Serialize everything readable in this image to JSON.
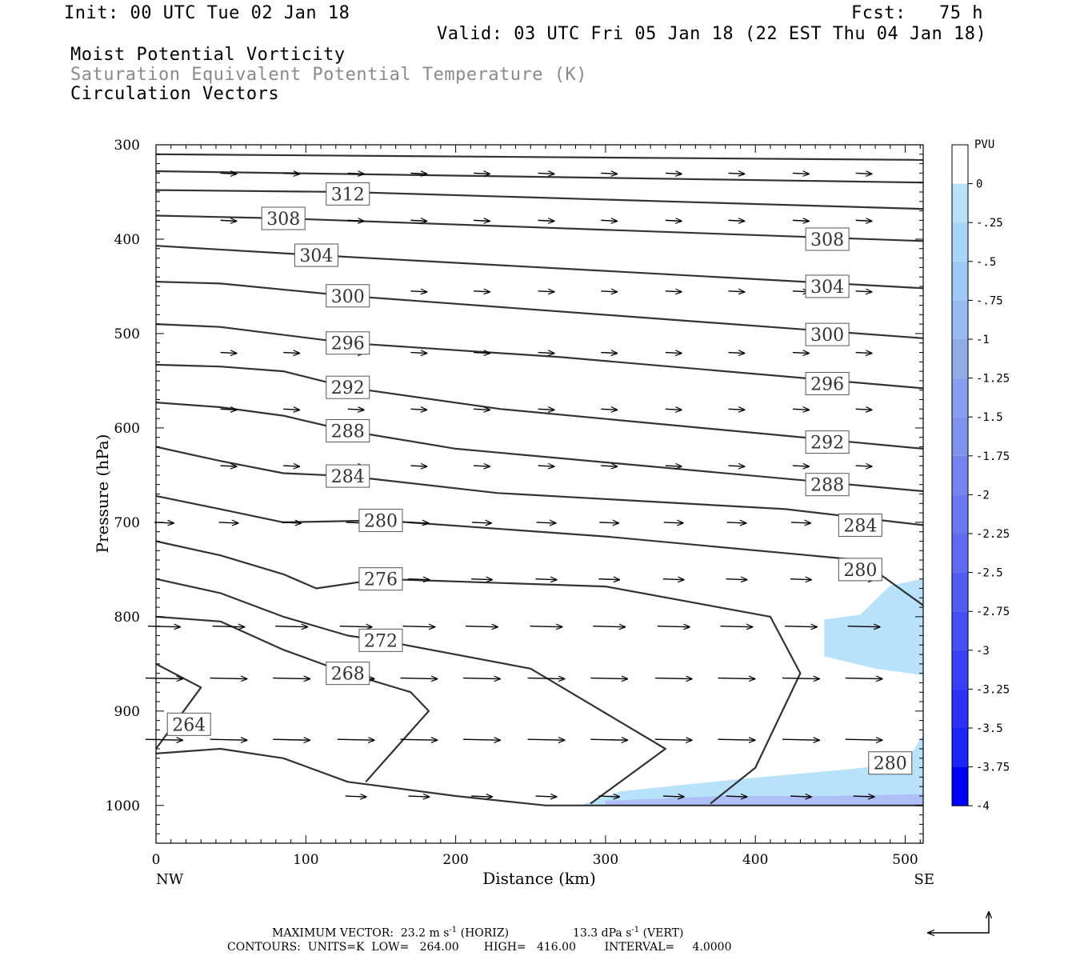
{
  "header": {
    "init": "Init: 00 UTC Tue 02 Jan 18",
    "fcst": "Fcst:   75 h",
    "valid": "Valid: 03 UTC Fri 05 Jan 18 (22 EST Thu 04 Jan 18)",
    "field1": "Moist Potential Vorticity",
    "field2": "Saturation Equivalent Potential Temperature (K)",
    "field3": "Circulation Vectors"
  },
  "colors": {
    "contour": "#333333",
    "field2_text": "#8a8a8a",
    "pv_fill_light": "#b8e2fa",
    "pv_fill_mid": "#9fd3f7",
    "pv_fill_dark": "#a9aff5"
  },
  "chart_data": {
    "type": "cross-section",
    "xlabel": "Distance (km)",
    "ylabel": "Pressure (hPa)",
    "x_endpoints": {
      "left": "NW",
      "right": "SE"
    },
    "xlim": [
      0,
      512
    ],
    "ylim": [
      1040,
      300
    ],
    "x_ticks": [
      0,
      100,
      200,
      300,
      400,
      500
    ],
    "y_ticks": [
      300,
      400,
      500,
      600,
      700,
      800,
      900,
      1000
    ],
    "contours": [
      {
        "label": "312",
        "points": [
          [
            0,
            310
          ],
          [
            512,
            316
          ]
        ],
        "labels_at": [
          [
            128,
            352
          ]
        ]
      },
      {
        "label": "",
        "points": [
          [
            0,
            328
          ],
          [
            512,
            340
          ]
        ]
      },
      {
        "label": "",
        "points": [
          [
            0,
            348
          ],
          [
            128,
            350
          ],
          [
            512,
            368
          ]
        ]
      },
      {
        "label": "308",
        "points": [
          [
            0,
            375
          ],
          [
            85,
            378
          ],
          [
            512,
            402
          ]
        ],
        "labels_at": [
          [
            85,
            378
          ],
          [
            448,
            400
          ]
        ]
      },
      {
        "label": "304",
        "points": [
          [
            0,
            407
          ],
          [
            107,
            417
          ],
          [
            512,
            452
          ]
        ],
        "labels_at": [
          [
            107,
            417
          ],
          [
            448,
            450
          ]
        ]
      },
      {
        "label": "300",
        "points": [
          [
            0,
            445
          ],
          [
            43,
            447
          ],
          [
            128,
            460
          ],
          [
            512,
            505
          ]
        ],
        "labels_at": [
          [
            128,
            460
          ],
          [
            448,
            501
          ]
        ]
      },
      {
        "label": "296",
        "points": [
          [
            0,
            490
          ],
          [
            43,
            493
          ],
          [
            128,
            510
          ],
          [
            270,
            525
          ],
          [
            512,
            558
          ]
        ],
        "labels_at": [
          [
            128,
            510
          ],
          [
            448,
            553
          ]
        ]
      },
      {
        "label": "292",
        "points": [
          [
            0,
            533
          ],
          [
            43,
            535
          ],
          [
            85,
            540
          ],
          [
            128,
            557
          ],
          [
            230,
            580
          ],
          [
            512,
            622
          ]
        ],
        "labels_at": [
          [
            128,
            557
          ],
          [
            448,
            615
          ]
        ]
      },
      {
        "label": "288",
        "points": [
          [
            0,
            573
          ],
          [
            43,
            578
          ],
          [
            85,
            587
          ],
          [
            128,
            603
          ],
          [
            200,
            622
          ],
          [
            512,
            667
          ]
        ],
        "labels_at": [
          [
            128,
            603
          ],
          [
            448,
            660
          ]
        ]
      },
      {
        "label": "284",
        "points": [
          [
            0,
            620
          ],
          [
            43,
            635
          ],
          [
            85,
            648
          ],
          [
            128,
            651
          ],
          [
            228,
            669
          ],
          [
            420,
            686
          ],
          [
            512,
            703
          ]
        ],
        "labels_at": [
          [
            128,
            651
          ],
          [
            470,
            703
          ]
        ]
      },
      {
        "label": "280",
        "points": [
          [
            0,
            672
          ],
          [
            43,
            686
          ],
          [
            85,
            700
          ],
          [
            150,
            698
          ],
          [
            300,
            715
          ],
          [
            470,
            740
          ],
          [
            512,
            788
          ]
        ],
        "labels_at": [
          [
            150,
            698
          ],
          [
            470,
            750
          ],
          [
            490,
            955
          ]
        ]
      },
      {
        "label": "276",
        "points": [
          [
            0,
            720
          ],
          [
            43,
            735
          ],
          [
            85,
            755
          ],
          [
            107,
            770
          ],
          [
            150,
            760
          ],
          [
            300,
            768
          ],
          [
            410,
            800
          ],
          [
            430,
            860
          ],
          [
            400,
            960
          ],
          [
            370,
            998
          ]
        ],
        "labels_at": [
          [
            150,
            760
          ]
        ]
      },
      {
        "label": "272",
        "points": [
          [
            0,
            760
          ],
          [
            43,
            775
          ],
          [
            85,
            800
          ],
          [
            128,
            820
          ],
          [
            150,
            825
          ],
          [
            250,
            855
          ],
          [
            340,
            940
          ],
          [
            290,
            998
          ]
        ],
        "labels_at": [
          [
            150,
            825
          ]
        ]
      },
      {
        "label": "268",
        "points": [
          [
            0,
            800
          ],
          [
            43,
            805
          ],
          [
            85,
            835
          ],
          [
            128,
            860
          ],
          [
            170,
            880
          ],
          [
            182,
            900
          ],
          [
            140,
            975
          ]
        ],
        "labels_at": [
          [
            128,
            860
          ]
        ]
      },
      {
        "label": "264",
        "points": [
          [
            0,
            850
          ],
          [
            30,
            875
          ],
          [
            0,
            940
          ]
        ],
        "labels_at": [
          [
            22,
            914
          ]
        ]
      },
      {
        "label": "",
        "points": [
          [
            0,
            945
          ],
          [
            43,
            940
          ],
          [
            85,
            950
          ],
          [
            128,
            975
          ],
          [
            200,
            990
          ],
          [
            260,
            1000
          ],
          [
            512,
            1000
          ]
        ]
      }
    ],
    "pv_regions": [
      {
        "level": "-0.25",
        "points": [
          [
            446,
            803
          ],
          [
            470,
            798
          ],
          [
            490,
            767
          ],
          [
            512,
            760
          ],
          [
            512,
            862
          ],
          [
            480,
            855
          ],
          [
            446,
            842
          ]
        ]
      },
      {
        "level": "-0.25",
        "points": [
          [
            283,
            1000
          ],
          [
            310,
            985
          ],
          [
            390,
            972
          ],
          [
            460,
            962
          ],
          [
            500,
            955
          ],
          [
            512,
            925
          ],
          [
            512,
            1000
          ]
        ]
      },
      {
        "level": "-0.5",
        "points": [
          [
            300,
            995
          ],
          [
            380,
            990
          ],
          [
            450,
            990
          ],
          [
            512,
            988
          ],
          [
            512,
            1000
          ],
          [
            300,
            1000
          ]
        ]
      }
    ],
    "vectors": [
      {
        "p": 330,
        "x": [
          43,
          85,
          128,
          170,
          212,
          255,
          297,
          340,
          382,
          425,
          467
        ],
        "u": [
          1,
          1,
          1,
          1,
          1,
          1,
          1,
          1,
          1,
          1,
          1
        ]
      },
      {
        "p": 380,
        "x": [
          43,
          85,
          128,
          170,
          212,
          255,
          297,
          340,
          382,
          425,
          467
        ],
        "u": [
          1,
          1,
          1,
          1,
          1,
          1,
          1,
          1,
          1,
          1,
          1
        ]
      },
      {
        "p": 455,
        "x": [
          128,
          170,
          212,
          255,
          297,
          340,
          382,
          425,
          467
        ],
        "u": [
          1,
          1,
          1,
          1,
          1,
          1,
          1,
          1,
          1
        ]
      },
      {
        "p": 520,
        "x": [
          43,
          85,
          128,
          170,
          212,
          255,
          297,
          340,
          382,
          425,
          467
        ],
        "u": [
          1,
          1,
          1,
          1,
          1,
          1,
          1,
          1,
          1,
          1,
          1
        ]
      },
      {
        "p": 580,
        "x": [
          43,
          85,
          128,
          170,
          212,
          255,
          297,
          340,
          382,
          425,
          467
        ],
        "u": [
          1,
          1,
          1,
          1,
          1,
          1,
          1,
          1,
          1,
          1,
          1
        ]
      },
      {
        "p": 640,
        "x": [
          43,
          85,
          128,
          170,
          212,
          255,
          297,
          340,
          382,
          425,
          467
        ],
        "u": [
          1,
          1,
          1,
          1,
          1,
          1,
          1,
          1,
          1,
          1,
          1
        ]
      },
      {
        "p": 700,
        "x": [
          0,
          43,
          85,
          128,
          170,
          212,
          255,
          297,
          340,
          382,
          425,
          467
        ],
        "u": [
          1.2,
          1.2,
          1.2,
          1.2,
          1.2,
          1.2,
          1.2,
          1.2,
          1.2,
          1.2,
          1.2,
          1.2
        ]
      },
      {
        "p": 760,
        "x": [
          170,
          212,
          255,
          297,
          340,
          382,
          425,
          467
        ],
        "u": [
          1.3,
          1.3,
          1.3,
          1.3,
          1.3,
          1.3,
          1.3,
          1.3
        ]
      },
      {
        "p": 810,
        "x": [
          0,
          43,
          85,
          128,
          170,
          212,
          255,
          297,
          340,
          382,
          425,
          467
        ],
        "u": [
          2,
          2,
          2,
          2,
          2,
          2,
          2,
          2,
          2,
          2,
          2,
          2
        ]
      },
      {
        "p": 865,
        "x": [
          0,
          43,
          85,
          128,
          170,
          212,
          255,
          297,
          340,
          382,
          425,
          467
        ],
        "u": [
          2.3,
          2.3,
          2.3,
          2.3,
          2.3,
          2.3,
          2.3,
          2.3,
          2.3,
          2.3,
          2.3,
          2.3
        ]
      },
      {
        "p": 930,
        "x": [
          0,
          43,
          85,
          128,
          170,
          212,
          255,
          297,
          340,
          382,
          425,
          467
        ],
        "u": [
          2.3,
          2.3,
          2.3,
          2.3,
          2.3,
          2.3,
          2.3,
          2.3,
          2.3,
          2.3,
          2.3,
          2.3
        ]
      },
      {
        "p": 990,
        "x": [
          128,
          170,
          212,
          255,
          297,
          340,
          382,
          425,
          467
        ],
        "u": [
          1.3,
          1.3,
          1.3,
          1.3,
          1.3,
          1.3,
          1.3,
          1.3,
          1.3
        ]
      }
    ],
    "colorbar": {
      "title": "PVU",
      "labels": [
        "0",
        "-.25",
        "-.5",
        "-.75",
        "-1",
        "-1.25",
        "-1.5",
        "-1.75",
        "-2",
        "-2.25",
        "-2.5",
        "-2.75",
        "-3",
        "-3.25",
        "-3.5",
        "-3.75",
        "-4"
      ],
      "colors": [
        "#ffffff",
        "#b8e2fa",
        "#a8d6f8",
        "#9fc8f6",
        "#97baf5",
        "#8face9",
        "#879ff0",
        "#7f92ee",
        "#7585ef",
        "#6978f0",
        "#5d6af1",
        "#515cf2",
        "#444ef4",
        "#3740f6",
        "#2a32f8",
        "#1d24fa",
        "#0000ff"
      ]
    }
  },
  "footer": {
    "max_vector": "MAXIMUM VECTOR:  23.2 m s",
    "max_vector_sup": "-1",
    "horiz": " (HORIZ)",
    "vert_val": "13.3 dPa s",
    "vert_sup": "-1",
    "vert": " (VERT)",
    "contours": "CONTOURS:  UNITS=K  LOW=   264.00       HIGH=   416.00        INTERVAL=     4.0000"
  }
}
